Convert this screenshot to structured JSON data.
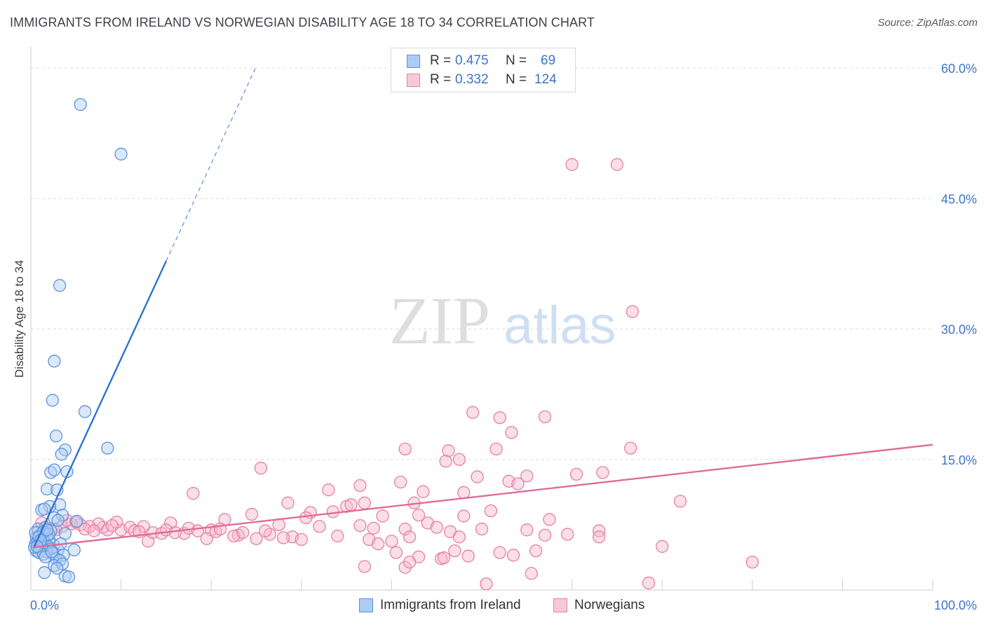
{
  "title": "IMMIGRANTS FROM IRELAND VS NORWEGIAN DISABILITY AGE 18 TO 34 CORRELATION CHART",
  "source": "Source: ZipAtlas.com",
  "watermark": {
    "zip": "ZIP",
    "atlas": "atlas"
  },
  "legend": {
    "series1": {
      "r_label": "R =",
      "r_value": "0.475",
      "n_label": "N =",
      "n_value": "69"
    },
    "series2": {
      "r_label": "R =",
      "r_value": "0.332",
      "n_label": "N =",
      "n_value": "124"
    }
  },
  "bottom_legend": {
    "series1": "Immigrants from Ireland",
    "series2": "Norwegians"
  },
  "colors": {
    "blue_fill": "#aecbf5",
    "blue_stroke": "#5b93de",
    "blue_line": "#2f72d1",
    "pink_fill": "#f7b9cc",
    "pink_stroke": "#e87fa1",
    "pink_line": "#e06b97",
    "axis_label": "#3d74c9",
    "grid": "#dcdcdc"
  },
  "chart_data": {
    "type": "scatter",
    "title": "IMMIGRANTS FROM IRELAND VS NORWEGIAN DISABILITY AGE 18 TO 34 CORRELATION CHART",
    "xlabel": "",
    "ylabel": "Disability Age 18 to 34",
    "xlim": [
      0,
      100
    ],
    "ylim": [
      0,
      63
    ],
    "x_tick_labels": [
      {
        "value": 0,
        "label": "0.0%"
      },
      {
        "value": 100,
        "label": "100.0%"
      }
    ],
    "x_minor_ticks": [
      10,
      20,
      30,
      40,
      50,
      60,
      70,
      80,
      90,
      100
    ],
    "y_ticks": [
      {
        "value": 15,
        "label": "15.0%"
      },
      {
        "value": 30,
        "label": "30.0%"
      },
      {
        "value": 45,
        "label": "45.0%"
      },
      {
        "value": 60,
        "label": "60.0%"
      }
    ],
    "grid": true,
    "series": [
      {
        "name": "Immigrants from Ireland",
        "color": "blue",
        "trend": {
          "x0": 0.3,
          "y0": 4.8,
          "x1": 15,
          "y1": 37.8,
          "dash_to_x": 25,
          "dash_to_y": 60.2
        },
        "points": [
          [
            5.5,
            55.8
          ],
          [
            10,
            50.1
          ],
          [
            3.2,
            35.0
          ],
          [
            2.6,
            26.3
          ],
          [
            2.4,
            21.8
          ],
          [
            6.0,
            20.5
          ],
          [
            2.8,
            17.7
          ],
          [
            8.5,
            16.3
          ],
          [
            3.8,
            16.1
          ],
          [
            3.4,
            15.6
          ],
          [
            4.0,
            13.6
          ],
          [
            2.2,
            13.5
          ],
          [
            2.6,
            13.8
          ],
          [
            1.8,
            11.6
          ],
          [
            2.9,
            11.5
          ],
          [
            3.2,
            9.8
          ],
          [
            2.1,
            9.6
          ],
          [
            1.2,
            9.2
          ],
          [
            1.5,
            9.3
          ],
          [
            3.5,
            8.6
          ],
          [
            2.6,
            8.3
          ],
          [
            3.0,
            8.0
          ],
          [
            5.1,
            7.9
          ],
          [
            1.6,
            7.2
          ],
          [
            0.8,
            7.0
          ],
          [
            2.2,
            6.8
          ],
          [
            1.1,
            6.4
          ],
          [
            1.8,
            6.2
          ],
          [
            0.6,
            6.0
          ],
          [
            1.3,
            5.9
          ],
          [
            2.0,
            5.8
          ],
          [
            0.9,
            5.6
          ],
          [
            3.8,
            6.5
          ],
          [
            1.5,
            5.5
          ],
          [
            0.7,
            5.4
          ],
          [
            0.5,
            5.3
          ],
          [
            1.0,
            5.2
          ],
          [
            2.5,
            5.2
          ],
          [
            1.9,
            5.0
          ],
          [
            1.2,
            4.9
          ],
          [
            0.8,
            4.8
          ],
          [
            2.2,
            4.7
          ],
          [
            0.6,
            4.5
          ],
          [
            3.0,
            4.6
          ],
          [
            1.7,
            4.4
          ],
          [
            4.8,
            4.6
          ],
          [
            0.9,
            4.3
          ],
          [
            2.4,
            4.2
          ],
          [
            1.4,
            4.1
          ],
          [
            3.6,
            4.0
          ],
          [
            2.8,
            3.6
          ],
          [
            1.6,
            3.8
          ],
          [
            3.2,
            3.4
          ],
          [
            0.4,
            4.9
          ],
          [
            2.6,
            2.8
          ],
          [
            3.5,
            3.0
          ],
          [
            2.9,
            2.5
          ],
          [
            1.5,
            2.0
          ],
          [
            3.8,
            1.6
          ],
          [
            4.2,
            1.5
          ],
          [
            0.5,
            6.6
          ],
          [
            1.4,
            6.7
          ],
          [
            2.0,
            6.4
          ],
          [
            0.9,
            6.1
          ],
          [
            1.1,
            5.7
          ],
          [
            3.3,
            5.3
          ],
          [
            0.7,
            5.0
          ],
          [
            2.3,
            4.4
          ],
          [
            1.8,
            6.9
          ]
        ]
      },
      {
        "name": "Norwegians",
        "color": "pink",
        "trend": {
          "x0": 0.3,
          "y0": 4.9,
          "x1": 100,
          "y1": 16.7
        },
        "points": [
          [
            60,
            48.9
          ],
          [
            65,
            48.9
          ],
          [
            66.7,
            32.0
          ],
          [
            49.0,
            20.4
          ],
          [
            52,
            19.8
          ],
          [
            57,
            19.9
          ],
          [
            53.3,
            18.1
          ],
          [
            41.5,
            16.2
          ],
          [
            46.3,
            16.0
          ],
          [
            51.6,
            16.2
          ],
          [
            66.5,
            16.3
          ],
          [
            63.4,
            13.5
          ],
          [
            46.0,
            14.8
          ],
          [
            47.5,
            15.0
          ],
          [
            25.5,
            14.0
          ],
          [
            49.5,
            13.0
          ],
          [
            55.0,
            13.1
          ],
          [
            60.5,
            13.3
          ],
          [
            53.0,
            12.5
          ],
          [
            41.0,
            12.4
          ],
          [
            33.0,
            11.5
          ],
          [
            43.5,
            11.3
          ],
          [
            36.5,
            12.0
          ],
          [
            48.0,
            11.2
          ],
          [
            18.0,
            11.1
          ],
          [
            42.5,
            10.0
          ],
          [
            54.0,
            12.2
          ],
          [
            28.5,
            10.0
          ],
          [
            37.0,
            10.0
          ],
          [
            33.5,
            9.0
          ],
          [
            35.0,
            9.6
          ],
          [
            72.0,
            10.2
          ],
          [
            51.0,
            9.1
          ],
          [
            24.5,
            8.7
          ],
          [
            31.0,
            8.9
          ],
          [
            39.0,
            8.5
          ],
          [
            35.5,
            9.8
          ],
          [
            48.0,
            8.5
          ],
          [
            43.0,
            8.6
          ],
          [
            21.5,
            8.1
          ],
          [
            30.5,
            8.3
          ],
          [
            57.5,
            8.1
          ],
          [
            50.0,
            7.0
          ],
          [
            20.0,
            6.9
          ],
          [
            27.5,
            7.5
          ],
          [
            36.5,
            7.4
          ],
          [
            44.0,
            7.7
          ],
          [
            38.0,
            7.1
          ],
          [
            41.5,
            7.0
          ],
          [
            46.5,
            6.7
          ],
          [
            55.0,
            6.9
          ],
          [
            57.0,
            6.3
          ],
          [
            63.0,
            6.8
          ],
          [
            59.5,
            6.4
          ],
          [
            23.0,
            6.3
          ],
          [
            26.5,
            6.4
          ],
          [
            29.0,
            6.1
          ],
          [
            32.0,
            7.3
          ],
          [
            34.0,
            6.2
          ],
          [
            37.5,
            5.8
          ],
          [
            40.0,
            5.6
          ],
          [
            42.0,
            6.1
          ],
          [
            45.0,
            7.2
          ],
          [
            47.5,
            6.1
          ],
          [
            15.5,
            7.7
          ],
          [
            12.5,
            7.3
          ],
          [
            10.0,
            6.9
          ],
          [
            8.0,
            7.2
          ],
          [
            13.0,
            5.6
          ],
          [
            17.0,
            6.5
          ],
          [
            19.5,
            5.9
          ],
          [
            22.5,
            6.2
          ],
          [
            25.0,
            5.9
          ],
          [
            28.0,
            6.0
          ],
          [
            30.0,
            5.8
          ],
          [
            9.5,
            7.8
          ],
          [
            7.5,
            7.6
          ],
          [
            6.5,
            7.3
          ],
          [
            5.5,
            7.5
          ],
          [
            4.5,
            7.6
          ],
          [
            3.5,
            7.3
          ],
          [
            2.5,
            7.0
          ],
          [
            1.5,
            7.1
          ],
          [
            0.8,
            6.7
          ],
          [
            1.2,
            7.7
          ],
          [
            2.8,
            6.9
          ],
          [
            4.0,
            8.0
          ],
          [
            5.0,
            7.8
          ],
          [
            6.0,
            7.0
          ],
          [
            7.0,
            6.8
          ],
          [
            8.5,
            6.9
          ],
          [
            9.0,
            7.4
          ],
          [
            11.0,
            7.2
          ],
          [
            11.5,
            6.8
          ],
          [
            12.0,
            6.7
          ],
          [
            13.5,
            6.6
          ],
          [
            14.5,
            6.5
          ],
          [
            15.0,
            6.9
          ],
          [
            16.0,
            6.6
          ],
          [
            17.5,
            7.1
          ],
          [
            18.5,
            6.8
          ],
          [
            20.5,
            6.7
          ],
          [
            21.0,
            7.0
          ],
          [
            23.5,
            6.6
          ],
          [
            26.0,
            6.8
          ],
          [
            38.5,
            5.3
          ],
          [
            43.0,
            3.8
          ],
          [
            45.5,
            3.6
          ],
          [
            48.5,
            3.9
          ],
          [
            53.5,
            4.0
          ],
          [
            56.0,
            4.5
          ],
          [
            52.0,
            4.3
          ],
          [
            47.0,
            4.5
          ],
          [
            40.5,
            4.3
          ],
          [
            37.0,
            2.7
          ],
          [
            41.5,
            2.6
          ],
          [
            42.0,
            3.2
          ],
          [
            55.5,
            1.9
          ],
          [
            50.5,
            0.7
          ],
          [
            68.5,
            0.8
          ],
          [
            70.0,
            5.0
          ],
          [
            80.0,
            3.2
          ],
          [
            45.8,
            3.7
          ],
          [
            63.0,
            6.1
          ]
        ]
      }
    ]
  }
}
